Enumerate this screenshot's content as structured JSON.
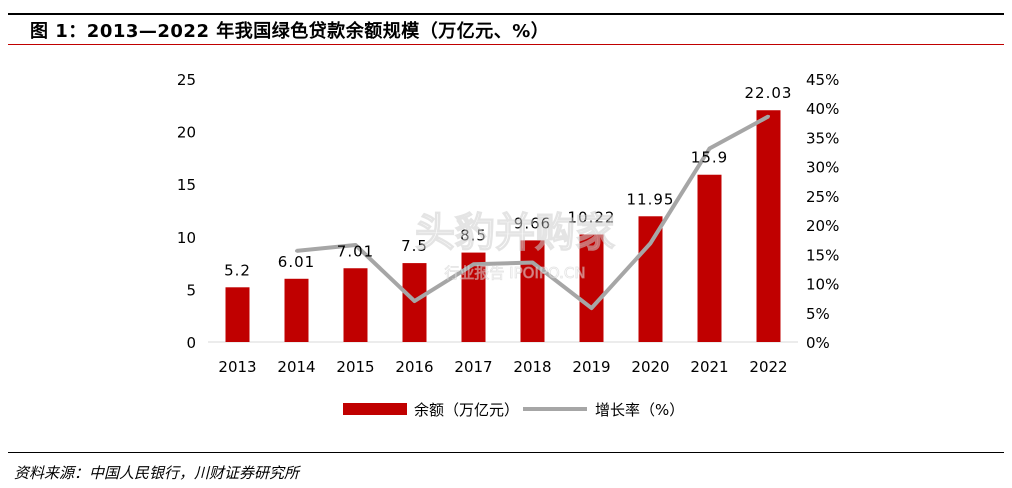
{
  "header": {
    "title": "图 1：2013—2022 年我国绿色贷款余额规模（万亿元、%）"
  },
  "watermark": {
    "main": "头豹并购家",
    "sub": "行业报告 IPOIPO.CN"
  },
  "colors": {
    "bar": "#c00000",
    "line": "#a6a6a6",
    "title_rule": "#c00000"
  },
  "chart_data": {
    "type": "bar",
    "categories": [
      "2013",
      "2014",
      "2015",
      "2016",
      "2017",
      "2018",
      "2019",
      "2020",
      "2021",
      "2022"
    ],
    "series": [
      {
        "name": "余额（万亿元）",
        "type": "bar",
        "axis": "left",
        "values": [
          5.2,
          6.01,
          7.01,
          7.5,
          8.5,
          9.66,
          10.22,
          11.95,
          15.9,
          22.03
        ],
        "labels": [
          "5.2",
          "6.01",
          "7.01",
          "7.5",
          "8.5",
          "9.66",
          "10.22",
          "11.95",
          "15.9",
          "22.03"
        ]
      },
      {
        "name": "增长率（%）",
        "type": "line",
        "axis": "right",
        "values": [
          null,
          15.6,
          16.6,
          7.0,
          13.3,
          13.6,
          5.8,
          16.9,
          33.1,
          38.6
        ]
      }
    ],
    "left_axis": {
      "range": [
        0,
        25
      ],
      "ticks": [
        0,
        5,
        10,
        15,
        20,
        25
      ],
      "tick_labels": [
        "0",
        "5",
        "10",
        "15",
        "20",
        "25"
      ]
    },
    "right_axis": {
      "range": [
        0,
        45
      ],
      "ticks": [
        0,
        5,
        10,
        15,
        20,
        25,
        30,
        35,
        40,
        45
      ],
      "tick_labels": [
        "0%",
        "5%",
        "10%",
        "15%",
        "20%",
        "25%",
        "30%",
        "35%",
        "40%",
        "45%"
      ]
    },
    "grid": false,
    "legend": {
      "position": "bottom",
      "entries": [
        "余额（万亿元）",
        "增长率（%）"
      ]
    }
  },
  "footer": {
    "source": "资料来源：中国人民银行，川财证券研究所"
  }
}
